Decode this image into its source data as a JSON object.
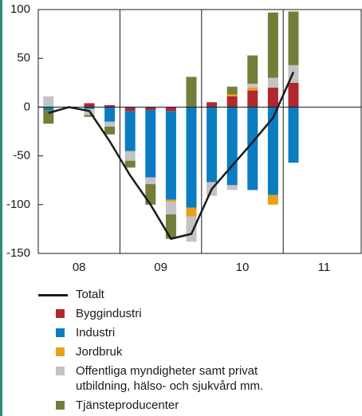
{
  "chart_data": {
    "type": "stacked_bar_line",
    "categories": [
      null,
      null,
      null,
      null,
      null,
      null,
      null,
      null,
      null,
      null,
      null,
      null,
      null
    ],
    "year_labels": [
      "08",
      "09",
      "10",
      "11"
    ],
    "ylim": [
      -150,
      100
    ],
    "yticks": [
      100,
      50,
      0,
      -50,
      -100,
      -150
    ],
    "line": {
      "name": "Totalt",
      "color": "#1a1a1a",
      "values": [
        -6,
        0,
        -4,
        -35,
        -70,
        -100,
        -135,
        -130,
        -84,
        -60,
        -36,
        -11,
        36
      ]
    },
    "series": [
      {
        "name": "Byggindustri",
        "color": "#b0282e",
        "values": [
          0,
          0,
          4,
          2,
          -4,
          -3,
          -4,
          0,
          5,
          11,
          17,
          20,
          25
        ]
      },
      {
        "name": "Industri",
        "color": "#0a7cc1",
        "values": [
          -3,
          0,
          -2,
          -15,
          -41,
          -69,
          -91,
          -103,
          -77,
          -80,
          -85,
          -90,
          -57
        ]
      },
      {
        "name": "Jordbruk",
        "color": "#e8a117",
        "values": [
          0,
          0,
          0,
          0,
          0,
          0,
          -2,
          -9,
          0,
          2,
          3,
          -10,
          0
        ]
      },
      {
        "name": "Offentliga myndigheter samt privat utbildning, hälso- och sjukvård mm.",
        "color": "#c3c3c3",
        "values": [
          11,
          0,
          -6,
          -5,
          -10,
          -7,
          -13,
          -26,
          -14,
          -5,
          4,
          10,
          18
        ]
      },
      {
        "name": "Tjänsteproducenter",
        "color": "#757d3a",
        "values": [
          -14,
          0,
          -2,
          -8,
          -7,
          -21,
          -25,
          31,
          0,
          8,
          29,
          67,
          55
        ]
      }
    ]
  }
}
